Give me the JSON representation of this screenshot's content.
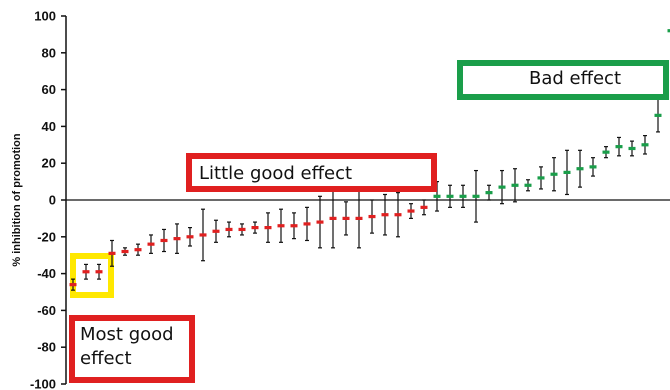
{
  "chart_data": {
    "type": "scatter",
    "ylabel": "% inhibition of promotion",
    "ylim": [
      -100,
      100
    ],
    "yticks": [
      100,
      80,
      60,
      40,
      20,
      0,
      -20,
      -40,
      -60,
      -80,
      -100
    ],
    "colors": {
      "good": "#e02020",
      "bad": "#1a9e4a",
      "error_bar": "#111111"
    },
    "series": [
      {
        "color_key": "good",
        "points": [
          {
            "x": 1,
            "y": -46,
            "err": 3
          },
          {
            "x": 2,
            "y": -39,
            "err": 4
          },
          {
            "x": 3,
            "y": -39,
            "err": 4
          },
          {
            "x": 4,
            "y": -29,
            "err": 7
          },
          {
            "x": 5,
            "y": -28,
            "err": 2
          },
          {
            "x": 6,
            "y": -27,
            "err": 3
          },
          {
            "x": 7,
            "y": -24,
            "err": 5
          },
          {
            "x": 8,
            "y": -22,
            "err": 6
          },
          {
            "x": 9,
            "y": -21,
            "err": 8
          },
          {
            "x": 10,
            "y": -20,
            "err": 5
          },
          {
            "x": 11,
            "y": -19,
            "err": 14
          },
          {
            "x": 12,
            "y": -17,
            "err": 6
          },
          {
            "x": 13,
            "y": -16,
            "err": 4
          },
          {
            "x": 14,
            "y": -16,
            "err": 3
          },
          {
            "x": 15,
            "y": -15,
            "err": 3
          },
          {
            "x": 16,
            "y": -15,
            "err": 8
          },
          {
            "x": 17,
            "y": -14,
            "err": 9
          },
          {
            "x": 18,
            "y": -14,
            "err": 7
          },
          {
            "x": 19,
            "y": -13,
            "err": 9
          },
          {
            "x": 20,
            "y": -12,
            "err": 14
          },
          {
            "x": 21,
            "y": -10,
            "err": 16
          },
          {
            "x": 22,
            "y": -10,
            "err": 9
          },
          {
            "x": 23,
            "y": -10,
            "err": 16
          },
          {
            "x": 24,
            "y": -9,
            "err": 9
          },
          {
            "x": 25,
            "y": -8,
            "err": 11
          },
          {
            "x": 26,
            "y": -8,
            "err": 12
          },
          {
            "x": 27,
            "y": -6,
            "err": 4
          },
          {
            "x": 28,
            "y": -4,
            "err": 4
          }
        ]
      },
      {
        "color_key": "bad",
        "points": [
          {
            "x": 29,
            "y": 2,
            "err": 8
          },
          {
            "x": 30,
            "y": 2,
            "err": 6
          },
          {
            "x": 31,
            "y": 2,
            "err": 6
          },
          {
            "x": 32,
            "y": 2,
            "err": 14
          },
          {
            "x": 33,
            "y": 4,
            "err": 4
          },
          {
            "x": 34,
            "y": 7,
            "err": 9
          },
          {
            "x": 35,
            "y": 8,
            "err": 9
          },
          {
            "x": 36,
            "y": 8,
            "err": 3
          },
          {
            "x": 37,
            "y": 12,
            "err": 6
          },
          {
            "x": 38,
            "y": 14,
            "err": 9
          },
          {
            "x": 39,
            "y": 15,
            "err": 12
          },
          {
            "x": 40,
            "y": 17,
            "err": 10
          },
          {
            "x": 41,
            "y": 18,
            "err": 5
          },
          {
            "x": 42,
            "y": 26,
            "err": 3
          },
          {
            "x": 43,
            "y": 29,
            "err": 5
          },
          {
            "x": 44,
            "y": 28,
            "err": 4
          },
          {
            "x": 45,
            "y": 30,
            "err": 5
          },
          {
            "x": 46,
            "y": 46,
            "err": 9
          },
          {
            "x": 47,
            "y": 92,
            "err": 0
          }
        ]
      }
    ],
    "annotations": [
      {
        "text": "Bad effect",
        "color": "#1a9e4a"
      },
      {
        "text": "Little good effect",
        "color": "#e02020"
      },
      {
        "lines": [
          "Most good",
          "effect"
        ],
        "color": "#e02020"
      },
      {
        "text": "",
        "color": "#ffe800"
      }
    ]
  }
}
